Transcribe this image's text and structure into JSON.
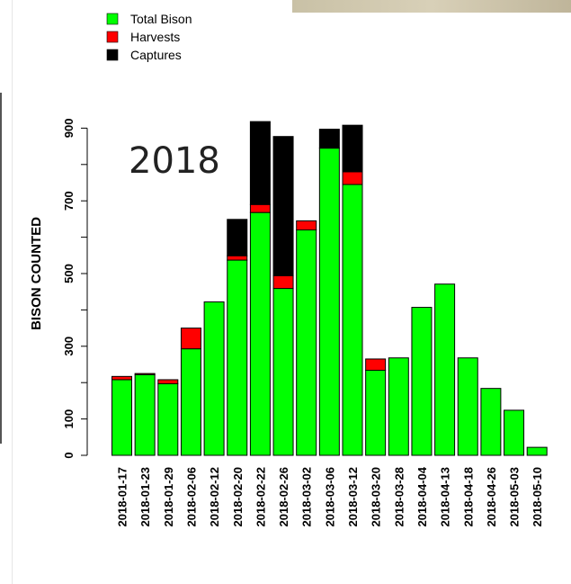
{
  "chart_data": {
    "type": "bar",
    "stacked": true,
    "annotation": "2018",
    "ylabel": "BISON COUNTED",
    "xlabel": "",
    "ylim": [
      0,
      1000
    ],
    "yticks": [
      0,
      100,
      300,
      500,
      700,
      900
    ],
    "legend_position": "top-left",
    "categories": [
      "2018-01-17",
      "2018-01-23",
      "2018-01-29",
      "2018-02-06",
      "2018-02-12",
      "2018-02-20",
      "2018-02-22",
      "2018-02-26",
      "2018-03-02",
      "2018-03-06",
      "2018-03-12",
      "2018-03-20",
      "2018-03-28",
      "2018-04-04",
      "2018-04-13",
      "2018-04-18",
      "2018-04-26",
      "2018-05-03",
      "2018-05-10"
    ],
    "series": [
      {
        "name": "Total Bison",
        "color": "#00ff00",
        "values": [
          208,
          222,
          197,
          293,
          422,
          537,
          668,
          459,
          620,
          845,
          745,
          234,
          268,
          407,
          471,
          268,
          184,
          124,
          22
        ]
      },
      {
        "name": "Harvests",
        "color": "#ff0000",
        "values": [
          9,
          3,
          11,
          57,
          0,
          12,
          22,
          35,
          25,
          0,
          35,
          31,
          0,
          0,
          0,
          0,
          0,
          0,
          0
        ]
      },
      {
        "name": "Captures",
        "color": "#000000",
        "values": [
          0,
          0,
          0,
          0,
          0,
          100,
          228,
          383,
          0,
          52,
          128,
          0,
          0,
          0,
          0,
          0,
          0,
          0,
          0
        ]
      }
    ]
  }
}
